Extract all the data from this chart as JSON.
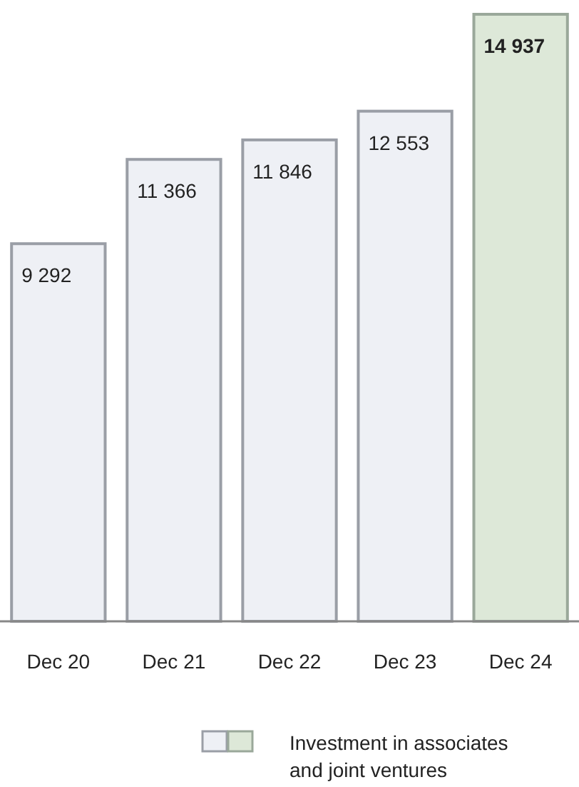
{
  "chart_data": {
    "type": "bar",
    "categories": [
      "Dec 20",
      "Dec 21",
      "Dec 22",
      "Dec 23",
      "Dec 24"
    ],
    "series": [
      {
        "name": "Investment in associates and joint ventures",
        "colors": [
          "#eef0f5",
          "#eef0f5",
          "#eef0f5",
          "#eef0f5",
          "#dde8d8"
        ],
        "values": [
          9292,
          11366,
          11846,
          12553,
          14937
        ]
      }
    ],
    "data_labels": true,
    "legend": "bottom"
  }
}
